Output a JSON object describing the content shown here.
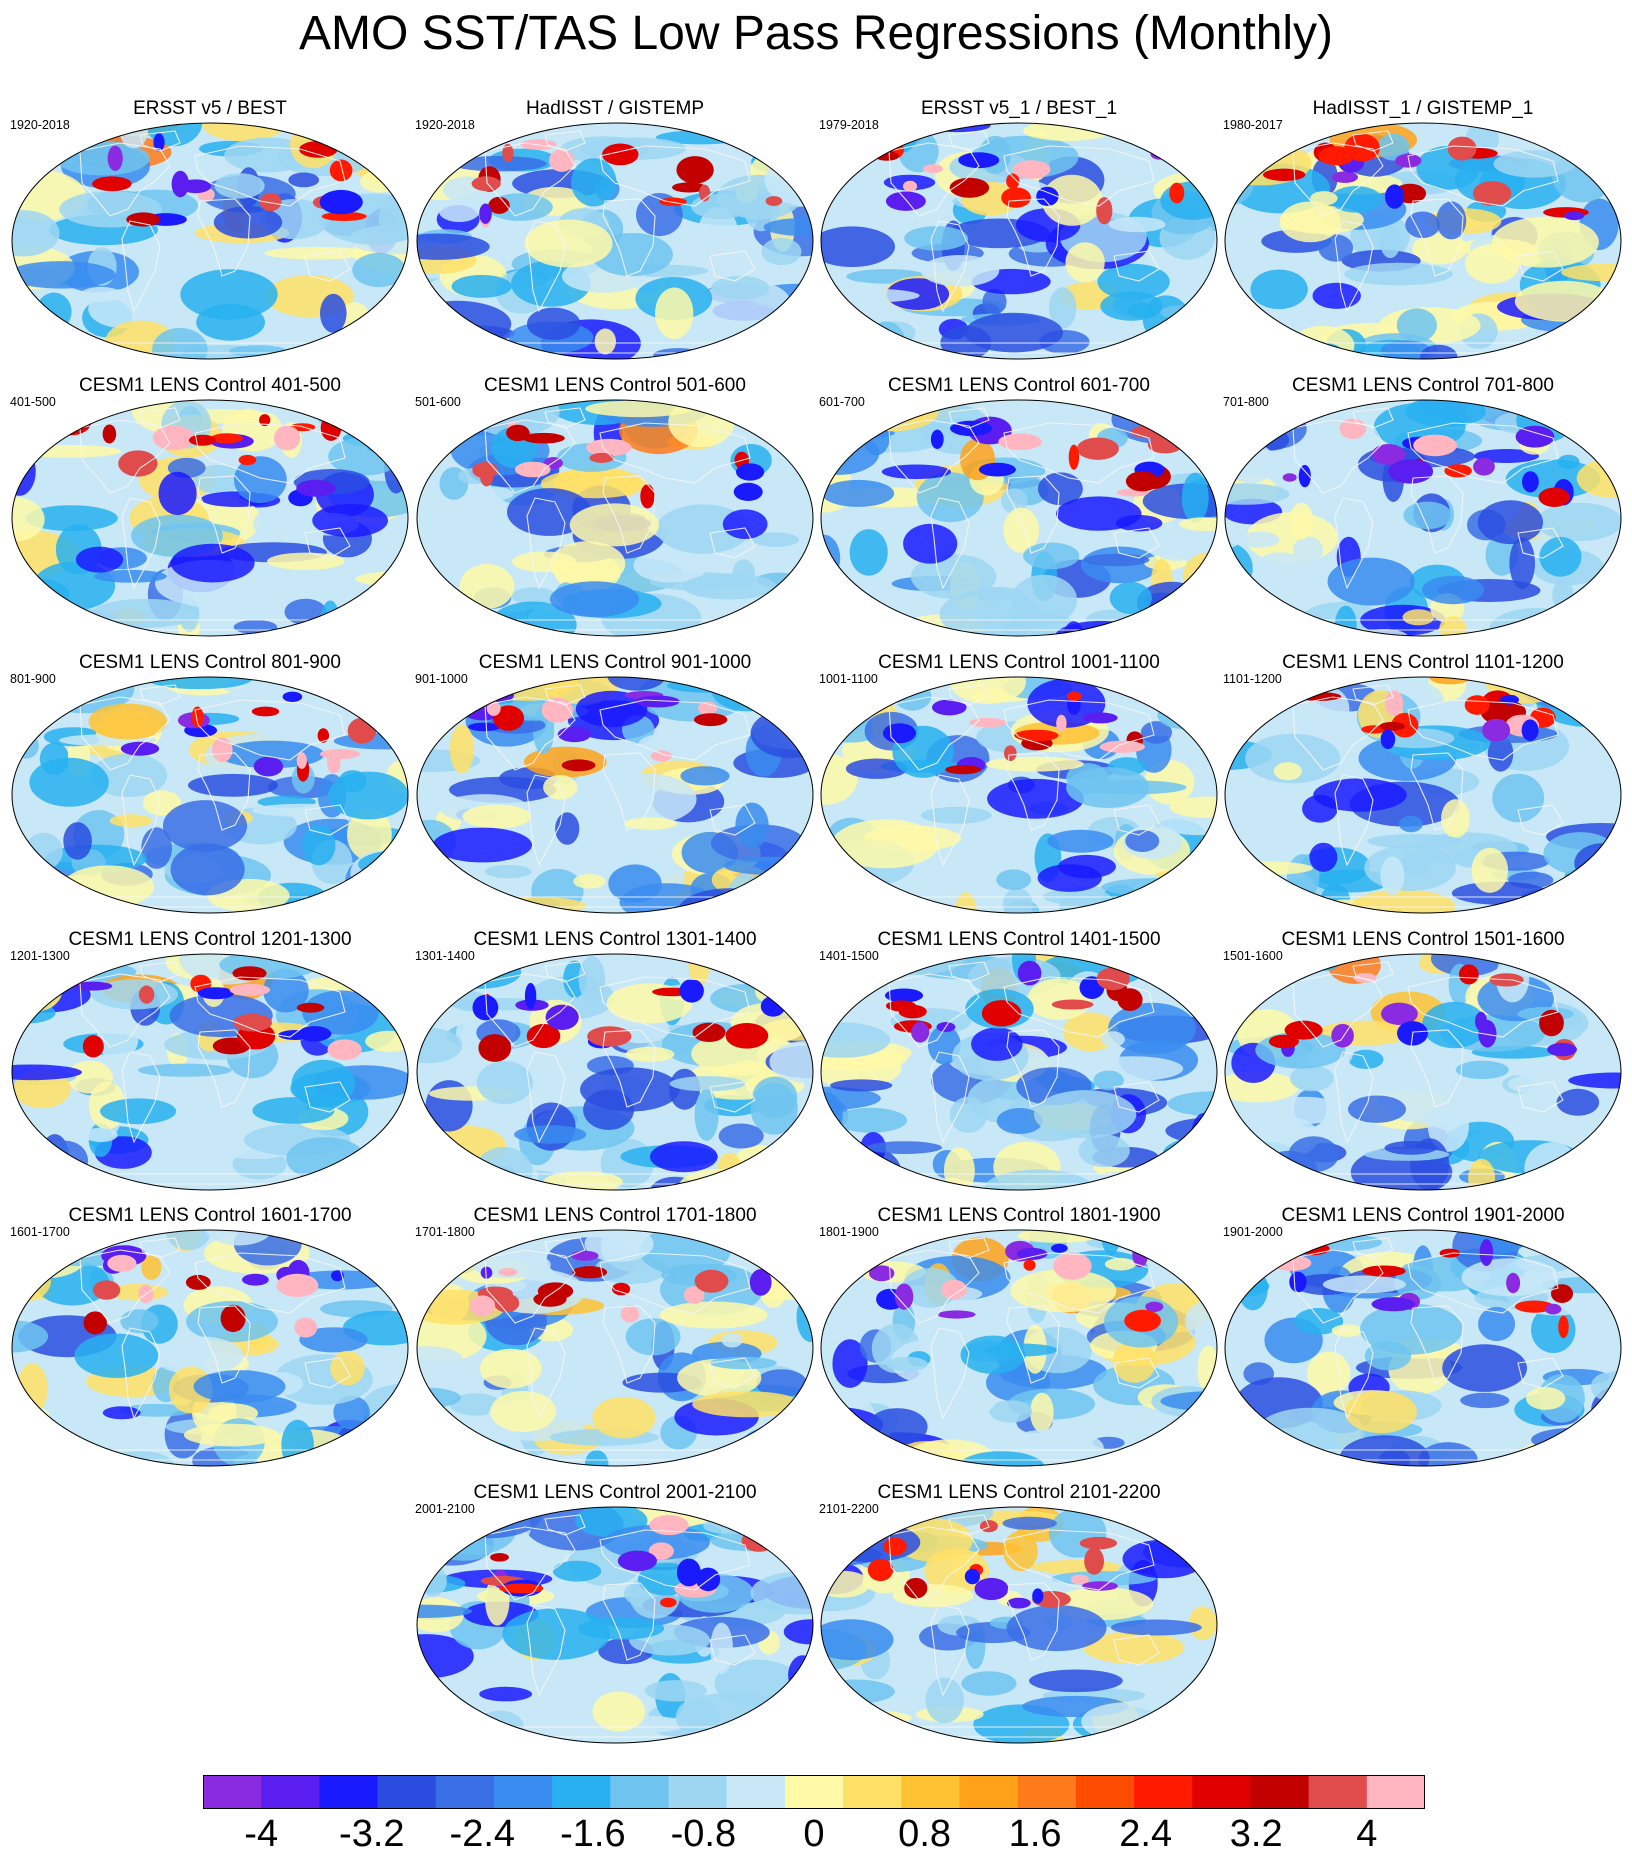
{
  "title": "AMO SST/TAS Low Pass Regressions (Monthly)",
  "panels": [
    {
      "title": "ERSST v5 / BEST",
      "period": "1920-2018"
    },
    {
      "title": "HadISST / GISTEMP",
      "period": "1920-2018"
    },
    {
      "title": "ERSST v5_1 / BEST_1",
      "period": "1979-2018"
    },
    {
      "title": "HadISST_1 / GISTEMP_1",
      "period": "1980-2017"
    },
    {
      "title": "CESM1 LENS Control 401-500",
      "period": "401-500"
    },
    {
      "title": "CESM1 LENS Control 501-600",
      "period": "501-600"
    },
    {
      "title": "CESM1 LENS Control 601-700",
      "period": "601-700"
    },
    {
      "title": "CESM1 LENS Control 701-800",
      "period": "701-800"
    },
    {
      "title": "CESM1 LENS Control 801-900",
      "period": "801-900"
    },
    {
      "title": "CESM1 LENS Control 901-1000",
      "period": "901-1000"
    },
    {
      "title": "CESM1 LENS Control 1001-1100",
      "period": "1001-1100"
    },
    {
      "title": "CESM1 LENS Control 1101-1200",
      "period": "1101-1200"
    },
    {
      "title": "CESM1 LENS Control 1201-1300",
      "period": "1201-1300"
    },
    {
      "title": "CESM1 LENS Control 1301-1400",
      "period": "1301-1400"
    },
    {
      "title": "CESM1 LENS Control 1401-1500",
      "period": "1401-1500"
    },
    {
      "title": "CESM1 LENS Control 1501-1600",
      "period": "1501-1600"
    },
    {
      "title": "CESM1 LENS Control 1601-1700",
      "period": "1601-1700"
    },
    {
      "title": "CESM1 LENS Control 1701-1800",
      "period": "1701-1800"
    },
    {
      "title": "CESM1 LENS Control 1801-1900",
      "period": "1801-1900"
    },
    {
      "title": "CESM1 LENS Control 1901-2000",
      "period": "1901-2000"
    },
    {
      "title": "CESM1 LENS Control 2001-2100",
      "period": "2001-2100"
    },
    {
      "title": "CESM1 LENS Control 2101-2200",
      "period": "2101-2200"
    }
  ],
  "chart_data": {
    "type": "heatmap",
    "map_projection": "robinson-like global map",
    "colorbar": {
      "orientation": "horizontal",
      "placement": "bottom",
      "levels": [
        -4,
        -3.6,
        -3.2,
        -2.8,
        -2.4,
        -2.0,
        -1.6,
        -1.2,
        -0.8,
        -0.4,
        0,
        0.4,
        0.8,
        1.2,
        1.6,
        2.0,
        2.4,
        2.8,
        3.2,
        3.6,
        4
      ],
      "tick_labels": [
        "-4",
        "-3.2",
        "-2.4",
        "-1.6",
        "-0.8",
        "0",
        "0.8",
        "1.6",
        "2.4",
        "3.2",
        "4"
      ],
      "colors": [
        "#8a2be2",
        "#5a1ff0",
        "#1a1aff",
        "#2a4de0",
        "#3a6ee6",
        "#3a8cf0",
        "#28b0f0",
        "#6fc4f0",
        "#9ed6f2",
        "#c8e8f8",
        "#fff9a8",
        "#ffe066",
        "#ffc233",
        "#ffa21a",
        "#ff7a1a",
        "#ff4d00",
        "#ff1a00",
        "#e00000",
        "#c20000",
        "#e04b4b",
        "#ffb6c1"
      ]
    },
    "panels_meaning": "regression of SST/TAS onto low-pass AMO index; each panel a dataset or 100-year control segment"
  }
}
